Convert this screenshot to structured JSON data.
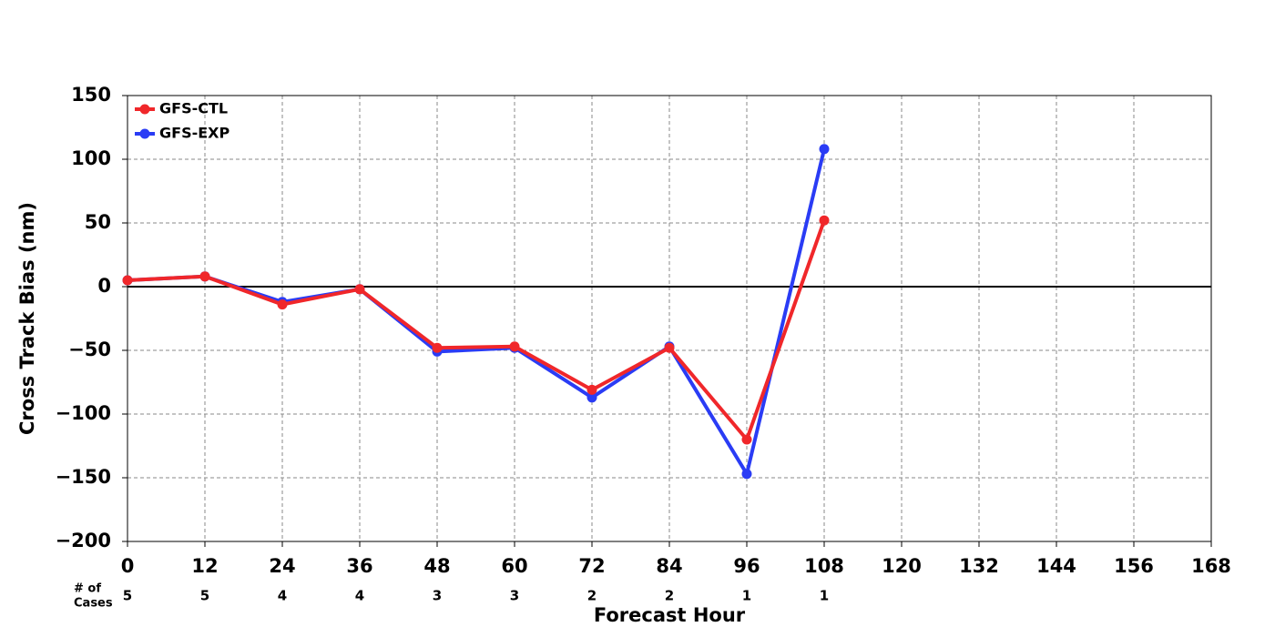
{
  "chart_data": {
    "type": "line",
    "xlabel": "Forecast Hour",
    "ylabel": "Cross Track Bias (nm)",
    "x": [
      0,
      12,
      24,
      36,
      48,
      60,
      72,
      84,
      96,
      108
    ],
    "series": [
      {
        "name": "GFS-CTL",
        "color": "#f0272a",
        "values": [
          5,
          8,
          -14,
          -2,
          -48,
          -47,
          -81,
          -48,
          -120,
          52
        ]
      },
      {
        "name": "GFS-EXP",
        "color": "#2a3cf5",
        "values": [
          5,
          8,
          -12,
          -2,
          -51,
          -48,
          -87,
          -47,
          -147,
          108
        ]
      }
    ],
    "xlim": [
      0,
      168
    ],
    "xticks": [
      0,
      12,
      24,
      36,
      48,
      60,
      72,
      84,
      96,
      108,
      120,
      132,
      144,
      156,
      168
    ],
    "ylim": [
      -200,
      150
    ],
    "yticks": [
      {
        "value": -200,
        "label": "−200"
      },
      {
        "value": -150,
        "label": "−150"
      },
      {
        "value": -100,
        "label": "−100"
      },
      {
        "value": -50,
        "label": "−50"
      },
      0,
      50,
      100,
      150
    ],
    "grid": true,
    "legend": "upper left",
    "cases_label": [
      "# of",
      "Cases"
    ],
    "cases": [
      5,
      5,
      4,
      4,
      3,
      3,
      2,
      2,
      1,
      1
    ]
  }
}
